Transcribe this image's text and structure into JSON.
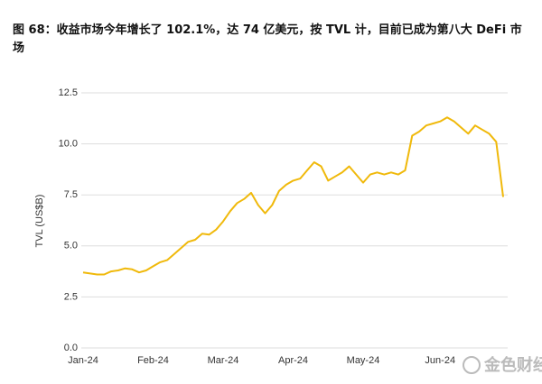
{
  "chart_data": {
    "type": "line",
    "title": "图 68：收益市场今年增长了 102.1%，达 74 亿美元，按 TVL 计，目前已成为第八大 DeFi 市场",
    "y_label": "TVL (US$B)",
    "watermark": "金色财经",
    "categories": [
      "Jan-24",
      null,
      null,
      null,
      null,
      null,
      null,
      null,
      null,
      null,
      "Feb-24",
      null,
      null,
      null,
      null,
      null,
      null,
      null,
      null,
      null,
      "Mar-24",
      null,
      null,
      null,
      null,
      null,
      null,
      null,
      null,
      null,
      "Apr-24",
      null,
      null,
      null,
      null,
      null,
      null,
      null,
      null,
      null,
      "May-24",
      null,
      null,
      null,
      null,
      null,
      null,
      null,
      null,
      null,
      null,
      "Jun-24",
      null,
      null,
      null,
      null,
      null,
      null,
      null,
      null,
      null
    ],
    "series": [
      {
        "color": "#f0b90b",
        "values": [
          3.7,
          3.65,
          3.6,
          3.6,
          3.75,
          3.8,
          3.9,
          3.85,
          3.7,
          3.8,
          4.0,
          4.2,
          4.3,
          4.6,
          4.9,
          5.2,
          5.3,
          5.6,
          5.55,
          5.8,
          6.2,
          6.7,
          7.1,
          7.3,
          7.6,
          7.0,
          6.6,
          7.0,
          7.7,
          8.0,
          8.2,
          8.3,
          8.7,
          9.1,
          8.9,
          8.2,
          8.4,
          8.6,
          8.9,
          8.5,
          8.1,
          8.5,
          8.6,
          8.5,
          8.6,
          8.5,
          8.7,
          10.4,
          10.6,
          10.9,
          11.0,
          11.1,
          11.3,
          11.1,
          10.8,
          10.5,
          10.9,
          10.7,
          10.5,
          10.1,
          7.4
        ]
      }
    ],
    "ylim": [
      0,
      12.5
    ],
    "yticks": [
      {
        "value": 0,
        "label": "0.0"
      },
      2.5,
      {
        "value": 5,
        "label": "5.0"
      },
      7.5,
      {
        "value": 10,
        "label": "10.0"
      },
      12.5
    ],
    "grid": true
  }
}
